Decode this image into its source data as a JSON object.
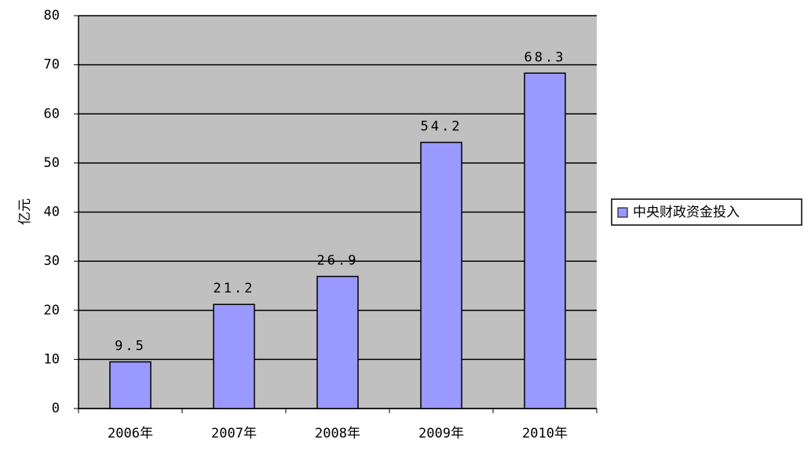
{
  "chart_data": {
    "type": "bar",
    "y_label": "亿元",
    "categories": [
      "2006年",
      "2007年",
      "2008年",
      "2009年",
      "2010年"
    ],
    "series": [
      {
        "name": "中央财政资金投入",
        "color": "#9999ff",
        "values": [
          9.5,
          21.2,
          26.9,
          54.2,
          68.3
        ]
      }
    ],
    "ylim": [
      0,
      80
    ],
    "yticks": [
      0,
      10,
      20,
      30,
      40,
      50,
      60,
      70,
      80
    ],
    "grid": true,
    "legend": "right"
  }
}
